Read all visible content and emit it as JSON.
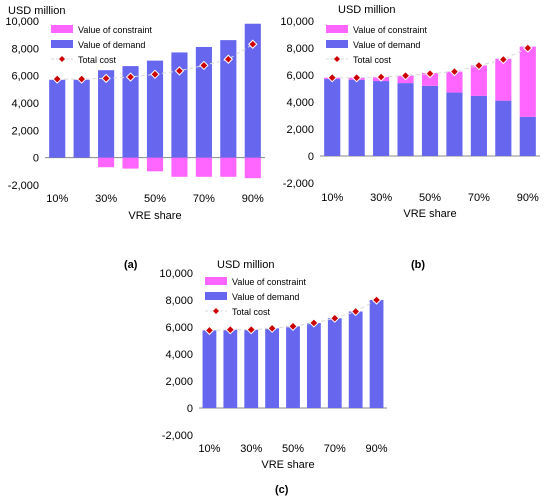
{
  "colors": {
    "demand": "#6666ee",
    "constraint": "#ff66ff",
    "marker": "#cc0000",
    "marker_edge": "#ffffff",
    "gridline": "#d9d9d9",
    "axis": "#888888",
    "text": "#000000"
  },
  "chart_data": [
    {
      "type": "bar",
      "panel_label": "(a)",
      "ylabel": "USD million",
      "xlabel": "VRE share",
      "ylim": [
        -2000,
        10000
      ],
      "yticks": [
        "-2,000",
        "0",
        "2,000",
        "4,000",
        "6,000",
        "8,000",
        "10,000"
      ],
      "ytick_values": [
        -2000,
        0,
        2000,
        4000,
        6000,
        8000,
        10000
      ],
      "categories": [
        "10%",
        "20%",
        "30%",
        "40%",
        "50%",
        "60%",
        "70%",
        "80%",
        "90%"
      ],
      "xtick_labels": [
        "10%",
        "",
        "30%",
        "",
        "50%",
        "",
        "70%",
        "",
        "90%"
      ],
      "legend": {
        "position": "top-left",
        "constraint": "Value of constraint",
        "demand": "Value of demand",
        "total": "Total cost"
      },
      "series": [
        {
          "name": "Value of constraint",
          "values": [
            0,
            0,
            -700,
            -800,
            -1000,
            -1400,
            -1400,
            -1400,
            -1500
          ]
        },
        {
          "name": "Value of demand",
          "values": [
            5700,
            5700,
            6400,
            6700,
            7100,
            7700,
            8100,
            8600,
            9800
          ]
        },
        {
          "name": "Total cost",
          "values": [
            5750,
            5750,
            5800,
            5900,
            6100,
            6350,
            6750,
            7200,
            8300
          ]
        }
      ]
    },
    {
      "type": "bar",
      "panel_label": "(b)",
      "ylabel": "USD million",
      "xlabel": "VRE share",
      "ylim": [
        -2000,
        10000
      ],
      "yticks": [
        "-2,000",
        "0",
        "2,000",
        "4,000",
        "6,000",
        "8,000",
        "10,000"
      ],
      "ytick_values": [
        -2000,
        0,
        2000,
        4000,
        6000,
        8000,
        10000
      ],
      "categories": [
        "10%",
        "20%",
        "30%",
        "40%",
        "50%",
        "60%",
        "70%",
        "80%",
        "90%"
      ],
      "xtick_labels": [
        "10%",
        "",
        "30%",
        "",
        "50%",
        "",
        "70%",
        "",
        "90%"
      ],
      "legend": {
        "position": "top-left",
        "constraint": "Value of constraint",
        "demand": "Value of demand",
        "total": "Total cost"
      },
      "series": [
        {
          "name": "Value of constraint",
          "values": [
            100,
            150,
            300,
            550,
            950,
            1550,
            2250,
            3100,
            5200
          ]
        },
        {
          "name": "Value of demand",
          "values": [
            5700,
            5650,
            5550,
            5400,
            5200,
            4700,
            4450,
            4100,
            2900
          ]
        },
        {
          "name": "Total cost",
          "values": [
            5800,
            5800,
            5850,
            5950,
            6100,
            6250,
            6700,
            7150,
            8000
          ]
        }
      ]
    },
    {
      "type": "bar",
      "panel_label": "(c)",
      "ylabel": "USD million",
      "xlabel": "VRE share",
      "ylim": [
        -2000,
        10000
      ],
      "yticks": [
        "-2,000",
        "0",
        "2,000",
        "4,000",
        "6,000",
        "8,000",
        "10,000"
      ],
      "ytick_values": [
        -2000,
        0,
        2000,
        4000,
        6000,
        8000,
        10000
      ],
      "categories": [
        "10%",
        "20%",
        "30%",
        "40%",
        "50%",
        "60%",
        "70%",
        "80%",
        "90%"
      ],
      "xtick_labels": [
        "10%",
        "",
        "30%",
        "",
        "50%",
        "",
        "70%",
        "",
        "90%"
      ],
      "legend": {
        "position": "top-left",
        "constraint": "Value of constraint",
        "demand": "Value of demand",
        "total": "Total cost"
      },
      "series": [
        {
          "name": "Value of constraint",
          "values": [
            0,
            0,
            0,
            0,
            0,
            0,
            0,
            0,
            0
          ]
        },
        {
          "name": "Value of demand",
          "values": [
            5750,
            5800,
            5800,
            5900,
            6050,
            6300,
            6650,
            7150,
            8000
          ]
        },
        {
          "name": "Total cost",
          "values": [
            5750,
            5800,
            5800,
            5900,
            6050,
            6300,
            6650,
            7150,
            8000
          ]
        }
      ]
    }
  ]
}
